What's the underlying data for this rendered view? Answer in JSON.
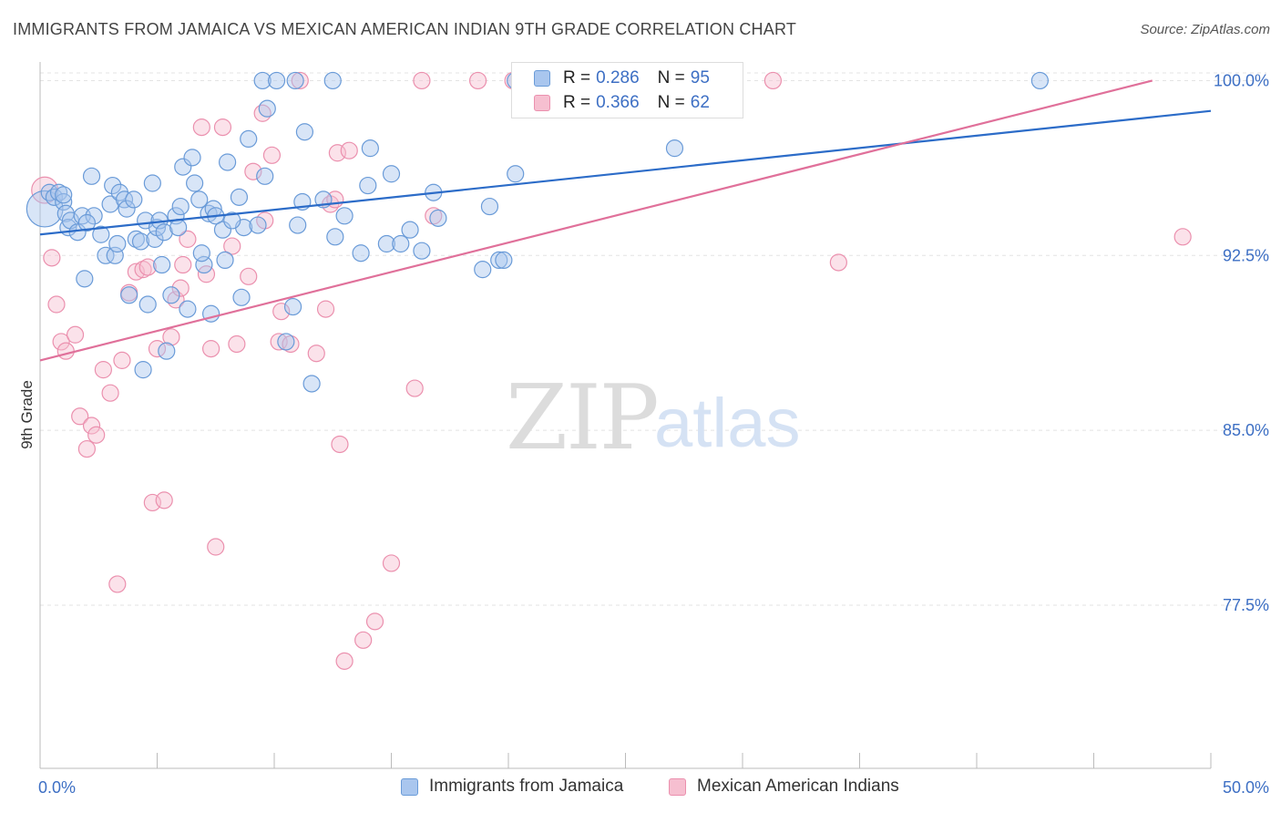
{
  "title": "IMMIGRANTS FROM JAMAICA VS MEXICAN AMERICAN INDIAN 9TH GRADE CORRELATION CHART",
  "source": "Source: ZipAtlas.com",
  "watermark": {
    "zip": "ZIP",
    "atlas": "atlas"
  },
  "colors": {
    "blue_fill": "#a9c6ee",
    "blue_stroke": "#6a9bd8",
    "blue_line": "#2c6cc8",
    "pink_fill": "#f6bfd0",
    "pink_stroke": "#eb90ae",
    "pink_line": "#e0709a",
    "tick_text": "#3d6fc4",
    "grid": "#e3e3e3"
  },
  "legend": {
    "rows": [
      {
        "r_label": "R =",
        "r_value": "0.286",
        "n_label": "N =",
        "n_value": "95"
      },
      {
        "r_label": "R =",
        "r_value": "0.366",
        "n_label": "N =",
        "n_value": "62"
      }
    ]
  },
  "chart_data": {
    "type": "scatter",
    "title": "IMMIGRANTS FROM JAMAICA VS MEXICAN AMERICAN INDIAN 9TH GRADE CORRELATION CHART",
    "xlabel": "",
    "ylabel": "9th Grade",
    "xlim": [
      0,
      50
    ],
    "ylim": [
      70.5,
      100.8
    ],
    "x_tick_labels": [
      "0.0%",
      "50.0%"
    ],
    "y_ticks": [
      77.5,
      85.0,
      92.5,
      100.0
    ],
    "y_tick_labels": [
      "77.5%",
      "85.0%",
      "92.5%",
      "100.0%"
    ],
    "grid": true,
    "legend_position": "top-center",
    "series": [
      {
        "name": "Immigrants from Jamaica",
        "color": "blue",
        "trend": {
          "x": [
            0,
            50
          ],
          "y": [
            93.4,
            98.7
          ]
        },
        "points": [
          [
            0.2,
            94.5,
            2.2
          ],
          [
            0.4,
            95.2,
            1.0
          ],
          [
            0.6,
            95.0,
            1.0
          ],
          [
            0.8,
            95.2,
            1.0
          ],
          [
            1.0,
            94.8,
            1.0
          ],
          [
            1.0,
            95.1,
            1.0
          ],
          [
            1.1,
            94.3,
            1.0
          ],
          [
            1.2,
            93.7,
            1.0
          ],
          [
            1.3,
            94.0,
            1.0
          ],
          [
            1.6,
            93.5,
            1.0
          ],
          [
            1.8,
            94.2,
            1.0
          ],
          [
            1.9,
            91.5,
            1.0
          ],
          [
            2.2,
            95.9,
            1.0
          ],
          [
            2.3,
            94.2,
            1.0
          ],
          [
            2.6,
            93.4,
            1.0
          ],
          [
            2.8,
            92.5,
            1.0
          ],
          [
            3.0,
            94.7,
            1.0
          ],
          [
            3.1,
            95.5,
            1.0
          ],
          [
            3.2,
            92.5,
            1.0
          ],
          [
            3.3,
            93.0,
            1.0
          ],
          [
            3.4,
            95.2,
            1.0
          ],
          [
            3.6,
            94.9,
            1.0
          ],
          [
            3.7,
            94.5,
            1.0
          ],
          [
            3.8,
            90.8,
            1.0
          ],
          [
            4.0,
            94.9,
            1.0
          ],
          [
            4.1,
            93.2,
            1.0
          ],
          [
            4.3,
            93.1,
            1.0
          ],
          [
            4.4,
            87.6,
            1.0
          ],
          [
            4.5,
            94.0,
            1.0
          ],
          [
            4.6,
            90.4,
            1.0
          ],
          [
            4.8,
            95.6,
            1.0
          ],
          [
            4.9,
            93.2,
            1.0
          ],
          [
            5.0,
            93.7,
            1.0
          ],
          [
            5.1,
            94.0,
            1.0
          ],
          [
            5.3,
            93.5,
            1.0
          ],
          [
            5.4,
            88.4,
            1.0
          ],
          [
            5.6,
            90.8,
            1.0
          ],
          [
            5.8,
            94.2,
            1.0
          ],
          [
            5.9,
            93.7,
            1.0
          ],
          [
            6.0,
            94.6,
            1.0
          ],
          [
            6.1,
            96.3,
            1.0
          ],
          [
            6.3,
            90.2,
            1.0
          ],
          [
            6.5,
            96.7,
            1.0
          ],
          [
            6.6,
            95.6,
            1.0
          ],
          [
            6.8,
            94.9,
            1.0
          ],
          [
            7.0,
            92.1,
            1.0
          ],
          [
            7.2,
            94.3,
            1.0
          ],
          [
            7.3,
            90.0,
            1.0
          ],
          [
            7.4,
            94.5,
            1.0
          ],
          [
            7.5,
            94.2,
            1.0
          ],
          [
            7.8,
            93.6,
            1.0
          ],
          [
            7.9,
            92.3,
            1.0
          ],
          [
            8.0,
            96.5,
            1.0
          ],
          [
            8.5,
            95.0,
            1.0
          ],
          [
            8.6,
            90.7,
            1.0
          ],
          [
            8.7,
            93.7,
            1.0
          ],
          [
            8.9,
            97.5,
            1.0
          ],
          [
            9.3,
            93.8,
            1.0
          ],
          [
            9.5,
            100.0,
            1.0
          ],
          [
            9.6,
            95.9,
            1.0
          ],
          [
            9.7,
            98.8,
            1.0
          ],
          [
            10.1,
            100.0,
            1.0
          ],
          [
            10.5,
            88.8,
            1.0
          ],
          [
            10.8,
            90.3,
            1.0
          ],
          [
            10.9,
            100.0,
            1.0
          ],
          [
            11.2,
            94.8,
            1.0
          ],
          [
            11.3,
            97.8,
            1.0
          ],
          [
            11.6,
            87.0,
            1.0
          ],
          [
            12.1,
            94.9,
            1.0
          ],
          [
            12.5,
            100.0,
            1.0
          ],
          [
            12.6,
            93.3,
            1.0
          ],
          [
            13.7,
            92.6,
            1.0
          ],
          [
            14.0,
            95.5,
            1.0
          ],
          [
            14.1,
            97.1,
            1.0
          ],
          [
            14.8,
            93.0,
            1.0
          ],
          [
            15.0,
            96.0,
            1.0
          ],
          [
            15.4,
            93.0,
            1.0
          ],
          [
            15.8,
            93.6,
            1.0
          ],
          [
            16.3,
            92.7,
            1.0
          ],
          [
            16.8,
            95.2,
            1.0
          ],
          [
            17.0,
            94.1,
            1.0
          ],
          [
            18.9,
            91.9,
            1.0
          ],
          [
            19.2,
            94.6,
            1.0
          ],
          [
            19.6,
            92.3,
            1.0
          ],
          [
            19.8,
            92.3,
            1.0
          ],
          [
            20.3,
            96.0,
            1.0
          ],
          [
            20.3,
            100.0,
            1.0
          ],
          [
            27.1,
            97.1,
            1.0
          ],
          [
            42.7,
            100.0,
            1.0
          ],
          [
            13.0,
            94.2,
            1.0
          ],
          [
            8.2,
            94.0,
            1.0
          ],
          [
            6.9,
            92.6,
            1.0
          ],
          [
            2.0,
            93.9,
            1.0
          ],
          [
            11.0,
            93.8,
            1.0
          ],
          [
            5.2,
            92.1,
            1.0
          ]
        ]
      },
      {
        "name": "Mexican American Indians",
        "color": "pink",
        "trend": {
          "x": [
            0,
            47.5
          ],
          "y": [
            88.0,
            100.0
          ]
        },
        "points": [
          [
            0.2,
            95.3,
            1.6
          ],
          [
            0.5,
            92.4,
            1.0
          ],
          [
            0.7,
            90.4,
            1.0
          ],
          [
            0.9,
            88.8,
            1.0
          ],
          [
            1.1,
            88.4,
            1.0
          ],
          [
            1.5,
            89.1,
            1.0
          ],
          [
            1.7,
            85.6,
            1.0
          ],
          [
            2.0,
            84.2,
            1.0
          ],
          [
            2.2,
            85.2,
            1.0
          ],
          [
            2.4,
            84.8,
            1.0
          ],
          [
            2.7,
            87.6,
            1.0
          ],
          [
            3.0,
            86.6,
            1.0
          ],
          [
            3.3,
            78.4,
            1.0
          ],
          [
            3.5,
            88.0,
            1.0
          ],
          [
            3.8,
            90.9,
            1.0
          ],
          [
            4.1,
            91.8,
            1.0
          ],
          [
            4.4,
            91.9,
            1.0
          ],
          [
            4.6,
            92.0,
            1.0
          ],
          [
            4.8,
            81.9,
            1.0
          ],
          [
            5.0,
            88.5,
            1.0
          ],
          [
            5.3,
            82.0,
            1.0
          ],
          [
            5.6,
            89.0,
            1.0
          ],
          [
            5.8,
            90.6,
            1.0
          ],
          [
            6.0,
            91.1,
            1.0
          ],
          [
            6.1,
            92.1,
            1.0
          ],
          [
            6.3,
            93.2,
            1.0
          ],
          [
            6.9,
            98.0,
            1.0
          ],
          [
            7.1,
            91.7,
            1.0
          ],
          [
            7.3,
            88.5,
            1.0
          ],
          [
            7.5,
            80.0,
            1.0
          ],
          [
            7.8,
            98.0,
            1.0
          ],
          [
            8.2,
            92.9,
            1.0
          ],
          [
            8.4,
            88.7,
            1.0
          ],
          [
            8.9,
            91.6,
            1.0
          ],
          [
            9.1,
            96.1,
            1.0
          ],
          [
            9.5,
            98.6,
            1.0
          ],
          [
            9.6,
            94.0,
            1.0
          ],
          [
            9.9,
            96.8,
            1.0
          ],
          [
            10.2,
            88.8,
            1.0
          ],
          [
            10.3,
            90.1,
            1.0
          ],
          [
            10.7,
            88.7,
            1.0
          ],
          [
            11.1,
            100.0,
            1.0
          ],
          [
            11.8,
            88.3,
            1.0
          ],
          [
            12.2,
            90.2,
            1.0
          ],
          [
            12.4,
            94.7,
            1.0
          ],
          [
            12.8,
            84.4,
            1.0
          ],
          [
            12.6,
            94.9,
            1.0
          ],
          [
            12.7,
            96.9,
            1.0
          ],
          [
            13.0,
            75.1,
            1.0
          ],
          [
            13.2,
            97.0,
            1.0
          ],
          [
            13.8,
            76.0,
            1.0
          ],
          [
            14.3,
            76.8,
            1.0
          ],
          [
            15.0,
            79.3,
            1.0
          ],
          [
            16.0,
            86.8,
            1.0
          ],
          [
            16.3,
            100.0,
            1.0
          ],
          [
            16.8,
            94.2,
            1.0
          ],
          [
            18.7,
            100.0,
            1.0
          ],
          [
            20.2,
            100.0,
            1.0
          ],
          [
            28.5,
            100.0,
            1.0
          ],
          [
            31.3,
            100.0,
            1.0
          ],
          [
            34.1,
            92.2,
            1.0
          ],
          [
            48.8,
            93.3,
            1.0
          ]
        ]
      }
    ]
  }
}
